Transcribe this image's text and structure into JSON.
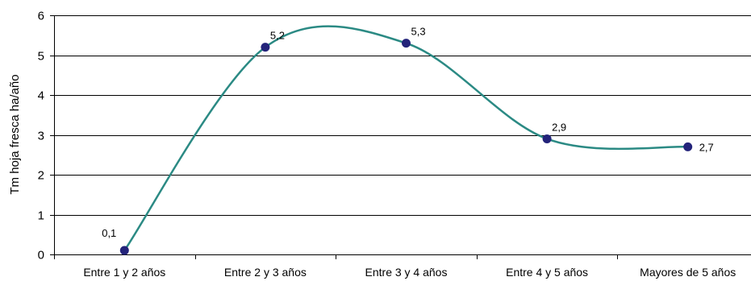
{
  "chart_data": {
    "type": "line",
    "categories": [
      "Entre 1 y 2 años",
      "Entre 2 y 3 años",
      "Entre 3 y 4 años",
      "Entre 4 y 5 años",
      "Mayores de 5 años"
    ],
    "values": [
      0.1,
      5.2,
      5.3,
      2.9,
      2.7
    ],
    "data_labels": [
      "0,1",
      "5,2",
      "5,3",
      "2,9",
      "2,7"
    ],
    "ylabel": "Tm hoja fresca ha/año",
    "xlabel": "",
    "ylim": [
      0,
      6
    ],
    "yticks": [
      0,
      1,
      2,
      3,
      4,
      5,
      6
    ],
    "grid": true,
    "smooth": true,
    "line_color": "#2b8a84",
    "marker_color": "#23237a"
  }
}
